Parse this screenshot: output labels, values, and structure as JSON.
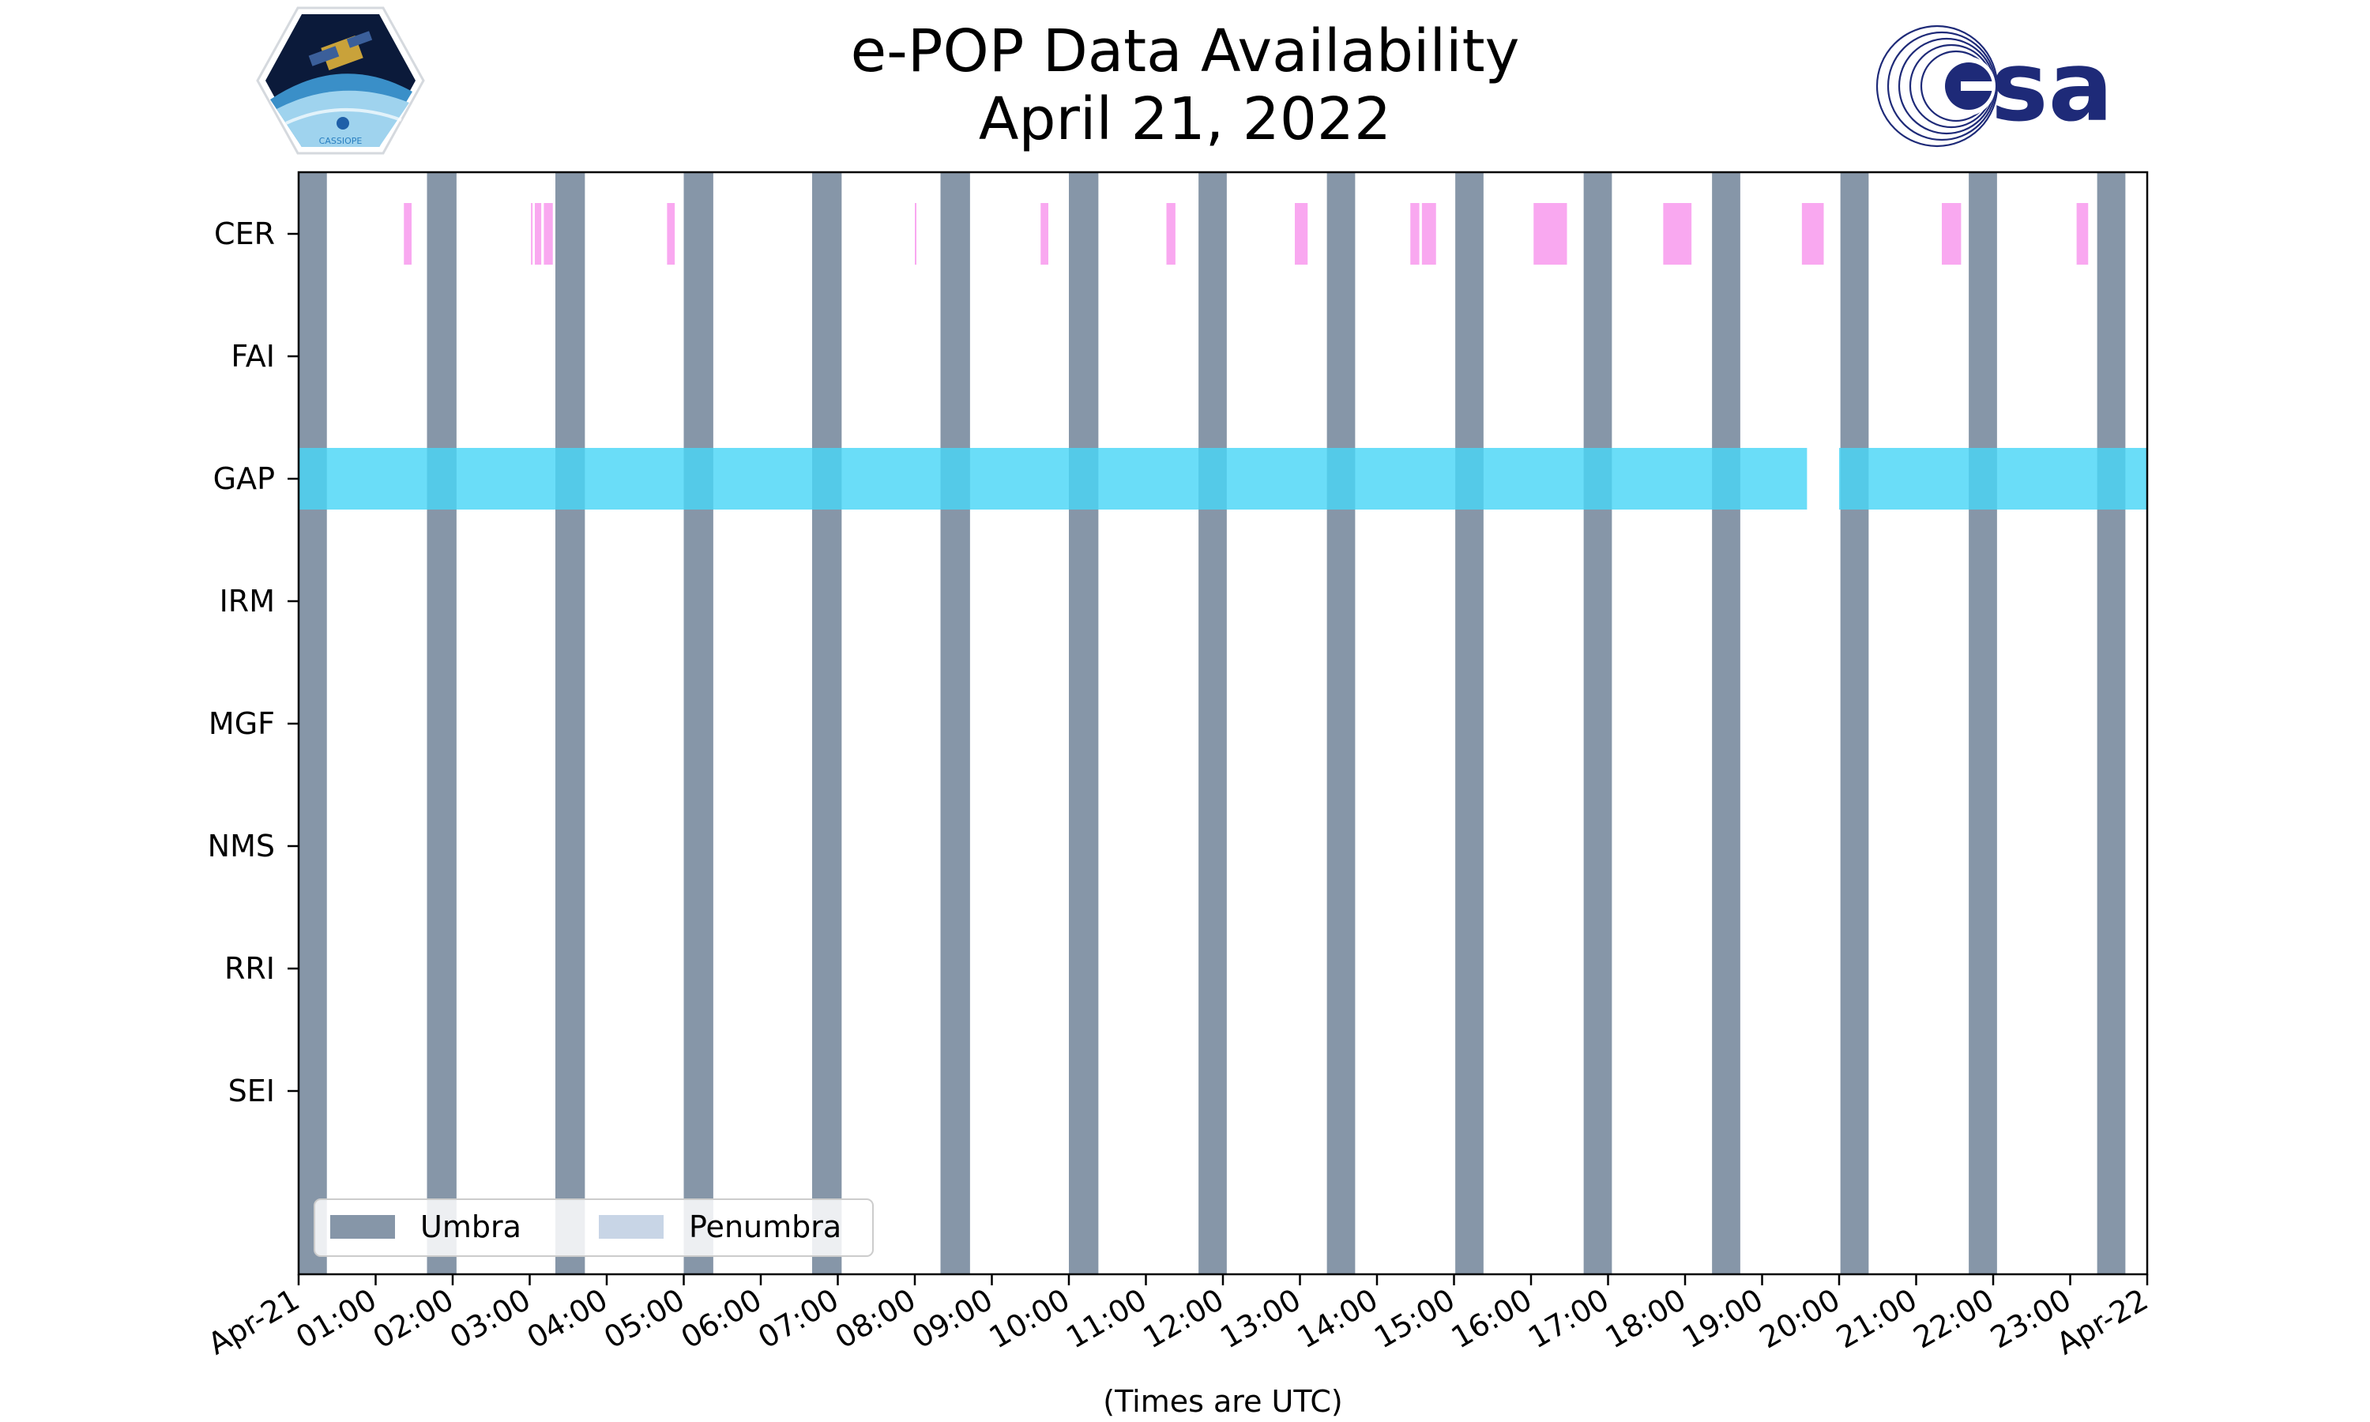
{
  "title": "e-POP Data Availability",
  "subtitle": "April 21, 2022",
  "logos": {
    "left": {
      "name": "cassiope-mission-patch",
      "text": "CASSIOPE"
    },
    "right": {
      "name": "esa-logo",
      "text": "esa",
      "color": "#1e2a78"
    }
  },
  "chart_data": {
    "type": "timeline",
    "xlabel": "(Times are UTC)",
    "x_range": [
      "2022-04-21 00:00",
      "2022-04-22 00:00"
    ],
    "x_tick_labels": [
      "Apr-21",
      "01:00",
      "02:00",
      "03:00",
      "04:00",
      "05:00",
      "06:00",
      "07:00",
      "08:00",
      "09:00",
      "10:00",
      "11:00",
      "12:00",
      "13:00",
      "14:00",
      "15:00",
      "16:00",
      "17:00",
      "18:00",
      "19:00",
      "20:00",
      "21:00",
      "22:00",
      "23:00",
      "Apr-22"
    ],
    "categories": [
      "CER",
      "FAI",
      "GAP",
      "IRM",
      "MGF",
      "NMS",
      "RRI",
      "SEI"
    ],
    "colors": {
      "umbra": "#8696a8",
      "penumbra": "#c8d5e6",
      "CER": "#f9a8f0",
      "GAP": "#49d6f6"
    },
    "legend": {
      "placement": "lower-left",
      "entries": [
        "Umbra",
        "Penumbra"
      ]
    },
    "umbra_intervals": [
      [
        "00:00",
        "00:22"
      ],
      [
        "01:40",
        "02:03"
      ],
      [
        "03:20",
        "03:43"
      ],
      [
        "05:00",
        "05:23"
      ],
      [
        "06:40",
        "07:03"
      ],
      [
        "08:20",
        "08:43"
      ],
      [
        "10:00",
        "10:23"
      ],
      [
        "11:41",
        "12:03"
      ],
      [
        "13:21",
        "13:43"
      ],
      [
        "15:01",
        "15:23"
      ],
      [
        "16:41",
        "17:03"
      ],
      [
        "18:21",
        "18:43"
      ],
      [
        "20:01",
        "20:23"
      ],
      [
        "21:41",
        "22:03"
      ],
      [
        "23:21",
        "23:43"
      ]
    ],
    "series": [
      {
        "name": "CER",
        "intervals": [
          [
            "01:22",
            "01:28"
          ],
          [
            "03:01",
            "03:02"
          ],
          [
            "03:04",
            "03:09"
          ],
          [
            "03:11",
            "03:18"
          ],
          [
            "04:47",
            "04:53"
          ],
          [
            "08:00",
            "08:01"
          ],
          [
            "09:38",
            "09:44"
          ],
          [
            "11:16",
            "11:23"
          ],
          [
            "12:56",
            "13:06"
          ],
          [
            "14:26",
            "14:33"
          ],
          [
            "14:35",
            "14:46"
          ],
          [
            "16:02",
            "16:28"
          ],
          [
            "17:43",
            "18:05"
          ],
          [
            "19:31",
            "19:48"
          ],
          [
            "21:20",
            "21:35"
          ],
          [
            "23:05",
            "23:14"
          ]
        ]
      },
      {
        "name": "GAP",
        "intervals": [
          [
            "00:00",
            "02:16"
          ],
          [
            "02:16",
            "19:35"
          ],
          [
            "20:00",
            "24:00"
          ]
        ]
      }
    ]
  }
}
